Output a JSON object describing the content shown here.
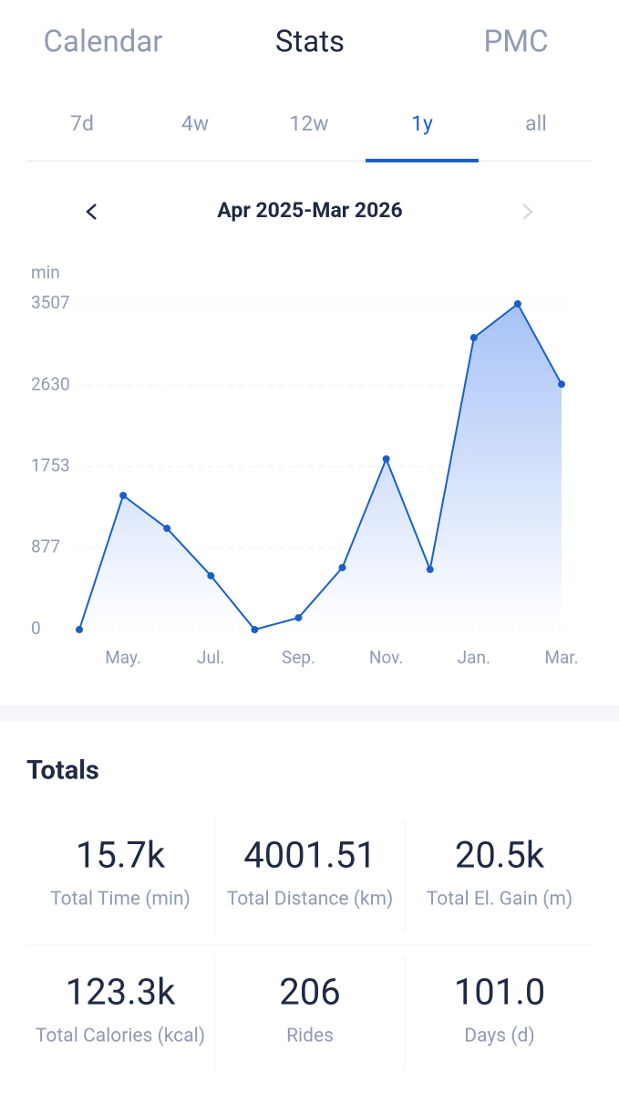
{
  "tabs": [
    "Calendar",
    "Stats",
    "PMC"
  ],
  "ranges": [
    "7d",
    "4w",
    "12w",
    "1y",
    "all"
  ],
  "period": "Apr 2025-Mar 2026",
  "chart": {
    "type": "line",
    "y_label": "min",
    "categories": [
      null,
      "May.",
      null,
      "Jul.",
      null,
      "Sep.",
      null,
      "Nov.",
      null,
      "Jan.",
      null,
      "Mar."
    ],
    "values": [
      0,
      1444,
      1090,
      580,
      0,
      128,
      668,
      1837,
      648,
      3143,
      3507,
      2642
    ],
    "color": "#1a5fc8",
    "ylim": [
      0,
      3507
    ],
    "yticks": [
      0,
      877,
      1753,
      2630,
      3507
    ],
    "grid": true
  },
  "totals": {
    "title": "Totals",
    "items": [
      {
        "value": "15.7k",
        "label": "Total Time (min)"
      },
      {
        "value": "4001.51",
        "label": "Total Distance (km)"
      },
      {
        "value": "20.5k",
        "label": "Total El. Gain (m)"
      },
      {
        "value": "123.3k",
        "label": "Total Calories (kcal)"
      },
      {
        "value": "206",
        "label": "Rides"
      },
      {
        "value": "101.0",
        "label": "Days (d)"
      }
    ]
  }
}
